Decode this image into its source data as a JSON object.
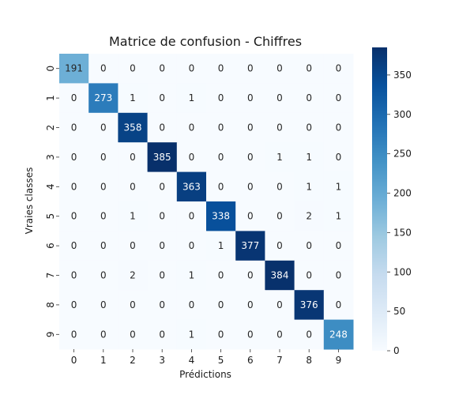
{
  "chart_data": {
    "type": "heatmap",
    "title": "Matrice de confusion - Chiffres",
    "xlabel": "Prédictions",
    "ylabel": "Vraies classes",
    "x_categories": [
      "0",
      "1",
      "2",
      "3",
      "4",
      "5",
      "6",
      "7",
      "8",
      "9"
    ],
    "y_categories": [
      "0",
      "1",
      "2",
      "3",
      "4",
      "5",
      "6",
      "7",
      "8",
      "9"
    ],
    "values": [
      [
        191,
        0,
        0,
        0,
        0,
        0,
        0,
        0,
        0,
        0
      ],
      [
        0,
        273,
        1,
        0,
        1,
        0,
        0,
        0,
        0,
        0
      ],
      [
        0,
        0,
        358,
        0,
        0,
        0,
        0,
        0,
        0,
        0
      ],
      [
        0,
        0,
        0,
        385,
        0,
        0,
        0,
        1,
        1,
        0
      ],
      [
        0,
        0,
        0,
        0,
        363,
        0,
        0,
        0,
        1,
        1
      ],
      [
        0,
        0,
        1,
        0,
        0,
        338,
        0,
        0,
        2,
        1
      ],
      [
        0,
        0,
        0,
        0,
        0,
        1,
        377,
        0,
        0,
        0
      ],
      [
        0,
        0,
        2,
        0,
        1,
        0,
        0,
        384,
        0,
        0
      ],
      [
        0,
        0,
        0,
        0,
        0,
        0,
        0,
        0,
        376,
        0
      ],
      [
        0,
        0,
        0,
        0,
        1,
        0,
        0,
        0,
        0,
        248
      ]
    ],
    "colorbar": {
      "min": 0,
      "max": 385,
      "ticks": [
        0,
        50,
        100,
        150,
        200,
        250,
        300,
        350
      ],
      "colormap": "Blues"
    },
    "colors": {
      "low": "#f7fbff",
      "high": "#08306b"
    }
  }
}
